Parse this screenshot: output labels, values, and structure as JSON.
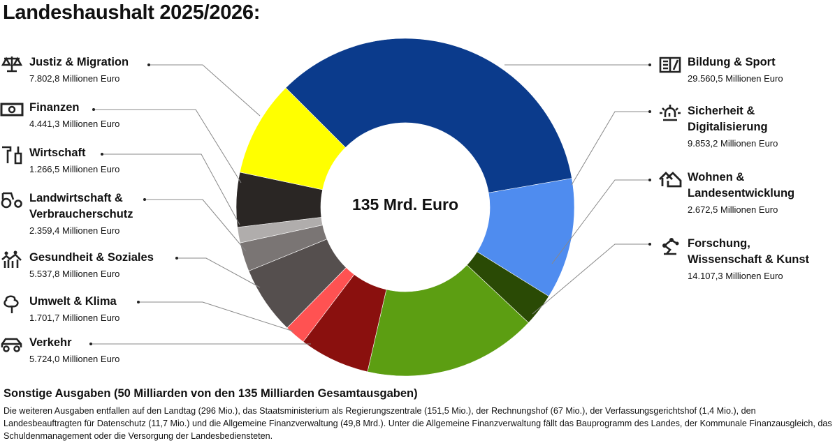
{
  "title": "Landeshaushalt 2025/2026:",
  "chart_data": {
    "type": "pie",
    "variant": "donut",
    "center_label": "135 Mrd. Euro",
    "unit": "Millionen Euro",
    "categories": [
      {
        "name": "Bildung & Sport",
        "value": 29560.5,
        "value_text": "29.560,5 Millionen Euro",
        "color": "#0b3b8c",
        "icon": "open-book-pencil-icon"
      },
      {
        "name": "Sicherheit & Digitalisierung",
        "value": 9853.2,
        "value_text": "9.853,2 Millionen Euro",
        "color": "#4f8cef",
        "icon": "siren-light-icon"
      },
      {
        "name": "Wohnen & Landesentwicklung",
        "value": 2672.5,
        "value_text": "2.672,5 Millionen Euro",
        "color": "#2a4a05",
        "icon": "houses-icon"
      },
      {
        "name": "Forschung, Wissenschaft & Kunst",
        "value": 14107.3,
        "value_text": "14.107,3 Millionen Euro",
        "color": "#5c9e12",
        "icon": "robot-arm-icon"
      },
      {
        "name": "Verkehr",
        "value": 5724.0,
        "value_text": "5.724,0 Millionen Euro",
        "color": "#8a100e",
        "icon": "car-icon"
      },
      {
        "name": "Umwelt & Klima",
        "value": 1701.7,
        "value_text": "1.701,7 Millionen Euro",
        "color": "#ff5252",
        "icon": "tree-icon"
      },
      {
        "name": "Gesundheit & Soziales",
        "value": 5537.8,
        "value_text": "5.537,8 Millionen Euro",
        "color": "#554f4e",
        "icon": "people-chart-icon"
      },
      {
        "name": "Landwirtschaft & Verbraucherschutz",
        "value": 2359.4,
        "value_text": "2.359,4 Millionen Euro",
        "color": "#7a7574",
        "icon": "tractor-icon"
      },
      {
        "name": "Wirtschaft",
        "value": 1266.5,
        "value_text": "1.266,5 Millionen Euro",
        "color": "#b0adac",
        "icon": "tools-icon"
      },
      {
        "name": "Finanzen",
        "value": 4441.3,
        "value_text": "4.441,3 Millionen Euro",
        "color": "#2a2624",
        "icon": "banknote-icon"
      },
      {
        "name": "Justiz & Migration",
        "value": 7802.8,
        "value_text": "7.802,8 Millionen Euro",
        "color": "#ffff00",
        "icon": "scales-icon"
      }
    ]
  },
  "other": {
    "title": "Sonstige Ausgaben (50 Milliarden von den 135 Milliarden Gesamtausgaben)",
    "text": "Die weiteren Ausgaben entfallen auf den Landtag (296 Mio.), das Staatsministerium als Regierungszentrale (151,5 Mio.), der Rechnungshof (67 Mio.), der Verfassungsgerichtshof (1,4 Mio.), den Landesbeauftragten für Datenschutz (11,7 Mio.) und die Allgemeine Finanzverwaltung (49,8 Mrd.). Unter die Allgemeine Finanzverwaltung fällt das Bauprogramm des Landes, der Kommunale Finanzausgleich, das Schuldenmanagement oder die Versorgung der Landesbediensteten."
  }
}
